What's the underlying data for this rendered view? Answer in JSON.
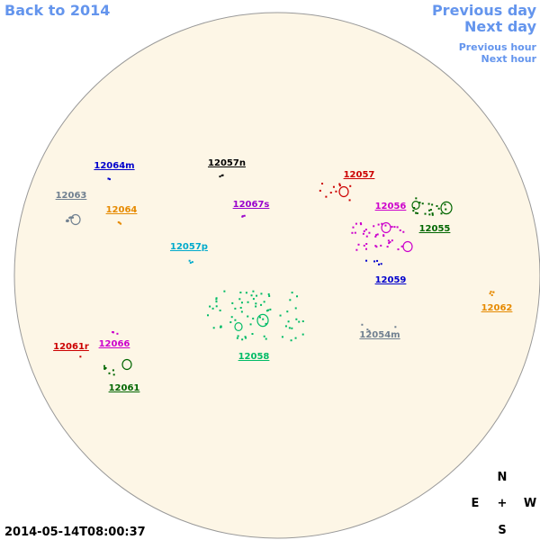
{
  "header": {
    "back_link": "Back to 2014",
    "previous_day": "Previous day",
    "next_day": "Next day",
    "previous_hour": "Previous hour",
    "next_hour": "Next hour"
  },
  "timestamp": "2014-05-14T08:00:37",
  "compass": {
    "north": "N",
    "east": "E",
    "center": "+",
    "west": "W",
    "south": "S"
  },
  "regions": [
    {
      "label": "12064m",
      "color": "#0000cc"
    },
    {
      "label": "12057n",
      "color": "#000000"
    },
    {
      "label": "12057",
      "color": "#cc0000"
    },
    {
      "label": "12063",
      "color": "#708090"
    },
    {
      "label": "12064",
      "color": "#e68a00"
    },
    {
      "label": "12067s",
      "color": "#9900cc"
    },
    {
      "label": "12056",
      "color": "#cc00cc"
    },
    {
      "label": "12055",
      "color": "#006600"
    },
    {
      "label": "12057p",
      "color": "#00aacc"
    },
    {
      "label": "12059",
      "color": "#0000cc"
    },
    {
      "label": "12062",
      "color": "#e68a00"
    },
    {
      "label": "12054m",
      "color": "#708090"
    },
    {
      "label": "12058",
      "color": "#00bb66"
    },
    {
      "label": "12061r",
      "color": "#cc0000"
    },
    {
      "label": "12066",
      "color": "#cc00cc"
    },
    {
      "label": "12061",
      "color": "#006600"
    }
  ]
}
